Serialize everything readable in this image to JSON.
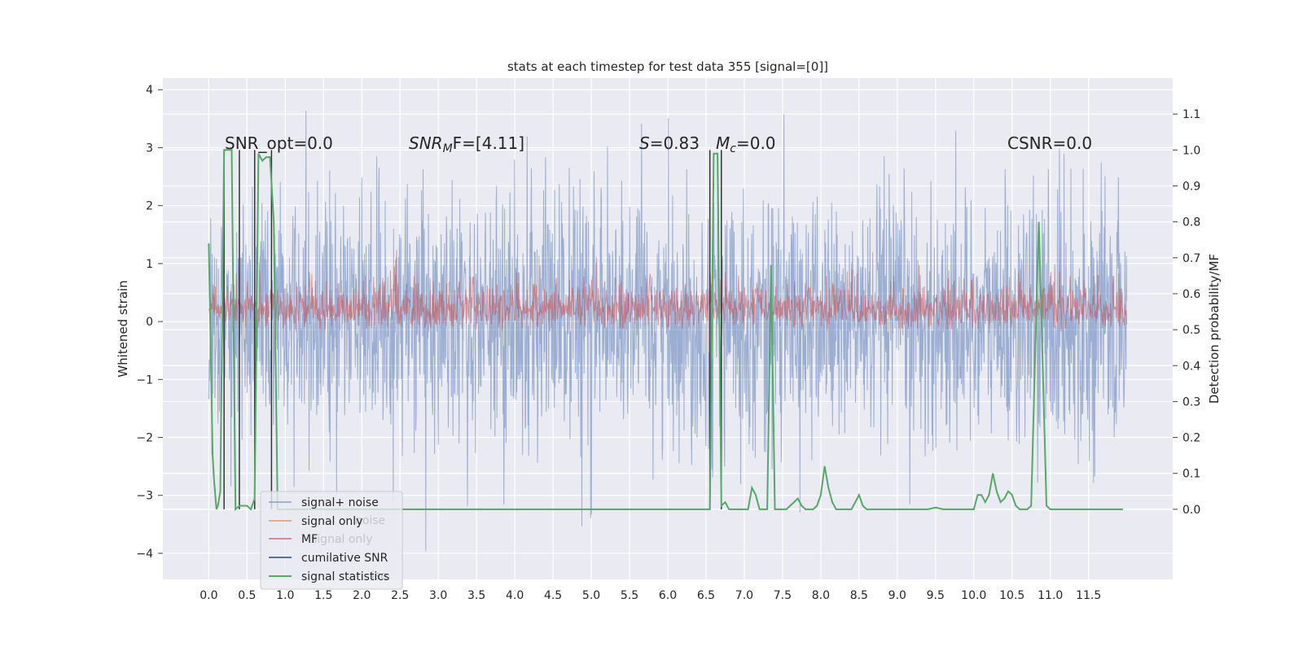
{
  "chart_data": {
    "type": "line",
    "title": "stats at each timestep for test data 355 [signal=[0]]",
    "xlabel": "",
    "ylabel": "Whitened strain",
    "y2label": "Detection probability/MF",
    "xlim": [
      -0.6,
      12.6
    ],
    "ylim": [
      -4.45,
      4.2
    ],
    "y2lim": [
      -0.195,
      1.2
    ],
    "x_ticks": [
      "0.0",
      "0.5",
      "1.0",
      "1.5",
      "2.0",
      "2.5",
      "3.0",
      "3.5",
      "4.0",
      "4.5",
      "5.0",
      "5.5",
      "6.0",
      "6.5",
      "7.0",
      "7.5",
      "8.0",
      "8.5",
      "9.0",
      "9.5",
      "10.0",
      "10.5",
      "11.0",
      "11.5"
    ],
    "y_ticks": [
      "4",
      "3",
      "2",
      "1",
      "0",
      "−1",
      "−2",
      "−3",
      "−4"
    ],
    "y2_ticks": [
      "1.1",
      "1.0",
      "0.9",
      "0.8",
      "0.7",
      "0.6",
      "0.5",
      "0.4",
      "0.3",
      "0.2",
      "0.1",
      "0.0"
    ],
    "grid": true,
    "legend_position": "lower-left",
    "legend_entries": [
      "signal+ noise",
      "signal only",
      "MF",
      "cumilative SNR",
      "signal statistics"
    ],
    "legend_ghost_text": [
      "noise",
      "signal only",
      "ise"
    ],
    "annotations": {
      "snr_opt": "SNR_opt=0.0",
      "snr_mf_main": "SNR",
      "snr_mf_sub": "M",
      "snr_mf_rest": "F=[4.11]",
      "s_main": "S",
      "s_rest": "=0.83",
      "mc_main": "M",
      "mc_sub": "c",
      "mc_rest": "=0.0",
      "csnr": "CSNR=0.0"
    },
    "series": [
      {
        "name": "signal+ noise",
        "color": "#4c72b0",
        "description_envelope_upper_approx": 2.6,
        "description_envelope_lower_approx": -2.6,
        "x_range": [
          0.0,
          12.0
        ]
      },
      {
        "name": "signal only",
        "color": "#dd8452",
        "x_range": [
          0.0,
          12.0
        ]
      },
      {
        "name": "MF",
        "color": "#c44e52",
        "x_range": [
          0.0,
          12.0
        ]
      },
      {
        "name": "cumilative SNR",
        "color": "#4c72b0",
        "x_range": [
          0.0,
          12.0
        ]
      },
      {
        "name": "signal statistics",
        "color": "#55a868",
        "x": [
          0.0,
          0.05,
          0.07,
          0.1,
          0.12,
          0.15,
          0.2,
          0.25,
          0.3,
          0.35,
          0.4,
          0.45,
          0.5,
          0.55,
          0.6,
          0.65,
          0.7,
          0.75,
          0.8,
          0.85,
          0.9,
          0.95,
          1.0,
          1.5,
          2.0,
          2.5,
          3.0,
          3.5,
          4.0,
          4.5,
          5.0,
          5.5,
          6.0,
          6.5,
          6.55,
          6.6,
          6.65,
          6.7,
          6.75,
          6.8,
          6.85,
          6.9,
          6.95,
          7.0,
          7.05,
          7.1,
          7.15,
          7.2,
          7.25,
          7.3,
          7.35,
          7.4,
          7.45,
          7.5,
          7.55,
          7.6,
          7.65,
          7.7,
          7.75,
          7.8,
          7.85,
          7.9,
          7.95,
          8.0,
          8.05,
          8.1,
          8.15,
          8.2,
          8.25,
          8.3,
          8.35,
          8.4,
          8.45,
          8.5,
          8.55,
          8.6,
          8.7,
          8.8,
          9.0,
          9.2,
          9.4,
          9.5,
          9.6,
          9.8,
          10.0,
          10.05,
          10.1,
          10.15,
          10.2,
          10.25,
          10.3,
          10.35,
          10.4,
          10.45,
          10.5,
          10.55,
          10.6,
          10.65,
          10.7,
          10.75,
          10.8,
          10.85,
          10.9,
          10.95,
          11.0,
          11.05,
          11.1,
          11.15,
          11.2,
          11.5,
          11.8,
          11.95
        ],
        "y": [
          0.74,
          0.15,
          0.08,
          0.0,
          0.01,
          0.05,
          1.0,
          1.0,
          1.0,
          0.0,
          0.01,
          0.01,
          0.01,
          0.0,
          0.03,
          0.99,
          0.97,
          0.98,
          0.98,
          0.8,
          0.0,
          0.0,
          0.0,
          0.0,
          0.0,
          0.0,
          0.0,
          0.0,
          0.0,
          0.0,
          0.0,
          0.0,
          0.0,
          0.0,
          0.0,
          0.99,
          0.99,
          0.01,
          0.02,
          0.0,
          0.0,
          0.0,
          0.0,
          0.0,
          0.0,
          0.06,
          0.04,
          0.0,
          0.0,
          0.0,
          0.68,
          0.0,
          0.0,
          0.0,
          0.0,
          0.01,
          0.02,
          0.03,
          0.01,
          0.0,
          0.0,
          0.0,
          0.01,
          0.04,
          0.12,
          0.06,
          0.02,
          0.0,
          0.0,
          0.0,
          0.0,
          0.0,
          0.02,
          0.04,
          0.01,
          0.0,
          0.0,
          0.0,
          0.0,
          0.0,
          0.0,
          0.005,
          0.0,
          0.0,
          0.0,
          0.04,
          0.04,
          0.02,
          0.04,
          0.1,
          0.05,
          0.02,
          0.03,
          0.05,
          0.04,
          0.01,
          0.0,
          0.0,
          0.0,
          0.01,
          0.41,
          0.8,
          0.41,
          0.01,
          0.0,
          0.0,
          0.0,
          0.0,
          0.0,
          0.0,
          0.0,
          0.0
        ]
      }
    ],
    "vertical_lines_x": [
      0.2,
      0.4,
      0.6,
      0.82,
      6.55,
      6.7
    ]
  }
}
